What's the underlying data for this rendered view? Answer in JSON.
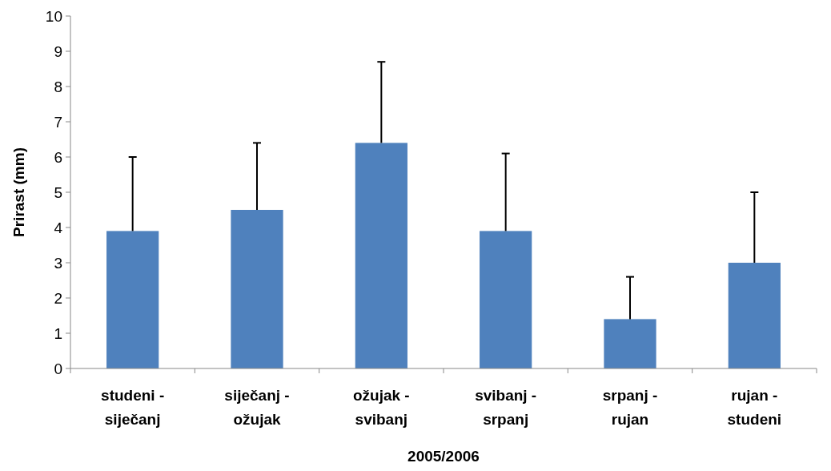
{
  "chart_data": {
    "type": "bar",
    "ylabel": "Prirast (mm)",
    "xlabel": "2005/2006",
    "categories": [
      "studeni - siječanj",
      "siječanj - ožujak",
      "ožujak - svibanj",
      "svibanj - srpanj",
      "srpanj - rujan",
      "rujan - studeni"
    ],
    "values": [
      3.9,
      4.5,
      6.4,
      3.9,
      1.4,
      3.0
    ],
    "errors": [
      [
        3.9,
        6.0
      ],
      [
        4.5,
        6.4
      ],
      [
        6.4,
        8.7
      ],
      [
        3.9,
        6.1
      ],
      [
        1.4,
        2.6
      ],
      [
        3.0,
        5.0
      ]
    ],
    "color": "#4f81bd",
    "ylim": [
      0,
      10
    ],
    "yticks": [
      0,
      1,
      2,
      3,
      4,
      5,
      6,
      7,
      8,
      9,
      10
    ],
    "grid": false
  }
}
